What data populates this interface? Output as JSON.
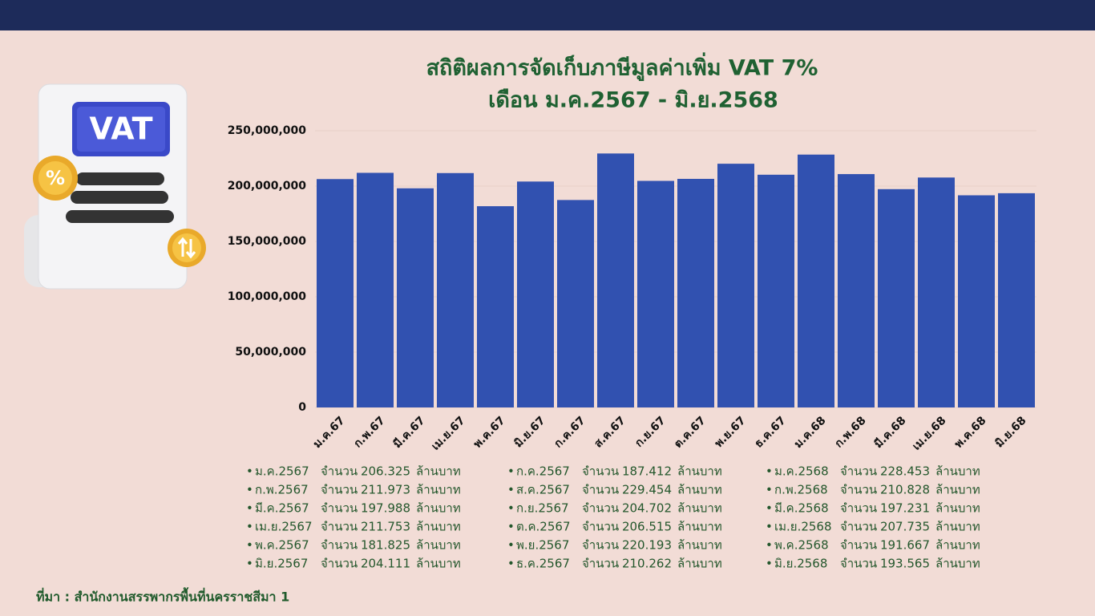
{
  "chart_data": {
    "type": "bar",
    "title": "สถิติผลการจัดเก็บภาษีมูลค่าเพิ่ม VAT 7%",
    "subtitle": "เดือน ม.ค.2567 - มิ.ย.2568",
    "categories": [
      "ม.ค.67",
      "ก.พ.67",
      "มี.ค.67",
      "เม.ย.67",
      "พ.ค.67",
      "มิ.ย.67",
      "ก.ค.67",
      "ส.ค.67",
      "ก.ย.67",
      "ต.ค.67",
      "พ.ย.67",
      "ธ.ค.67",
      "ม.ค.68",
      "ก.พ.68",
      "มี.ค.68",
      "เม.ย.68",
      "พ.ค.68",
      "มิ.ย.68"
    ],
    "values": [
      206325000,
      211973000,
      197988000,
      211753000,
      181825000,
      204111000,
      187412000,
      229454000,
      204702000,
      206515000,
      220193000,
      210262000,
      228453000,
      210828000,
      197231000,
      207735000,
      191667000,
      193565000
    ],
    "color": "#3151b0",
    "ylim": [
      0,
      250000000
    ],
    "yticks": [
      0,
      {
        "value": 50000000,
        "label": "50,000,000"
      },
      {
        "value": 100000000,
        "label": "100,000,000"
      },
      {
        "value": 150000000,
        "label": "150,000,000"
      },
      {
        "value": 200000000,
        "label": "200,000,000"
      },
      {
        "value": 250000000,
        "label": "250,000,000"
      }
    ],
    "grid": true
  },
  "icon": {
    "label": "VAT",
    "badge": "%"
  },
  "summary": [
    {
      "month": "ม.ค.2567",
      "word": "จำนวน",
      "amount": "206.325",
      "unit": "ล้านบาท"
    },
    {
      "month": "ก.พ.2567",
      "word": "จำนวน",
      "amount": "211.973",
      "unit": "ล้านบาท"
    },
    {
      "month": "มี.ค.2567",
      "word": "จำนวน",
      "amount": "197.988",
      "unit": "ล้านบาท"
    },
    {
      "month": "เม.ย.2567",
      "word": "จำนวน",
      "amount": "211.753",
      "unit": "ล้านบาท"
    },
    {
      "month": "พ.ค.2567",
      "word": "จำนวน",
      "amount": "181.825",
      "unit": "ล้านบาท"
    },
    {
      "month": "มิ.ย.2567",
      "word": "จำนวน",
      "amount": "204.111",
      "unit": "ล้านบาท"
    },
    {
      "month": "ก.ค.2567",
      "word": "จำนวน",
      "amount": "187.412",
      "unit": "ล้านบาท"
    },
    {
      "month": "ส.ค.2567",
      "word": "จำนวน",
      "amount": "229.454",
      "unit": "ล้านบาท"
    },
    {
      "month": "ก.ย.2567",
      "word": "จำนวน",
      "amount": "204.702",
      "unit": "ล้านบาท"
    },
    {
      "month": "ต.ค.2567",
      "word": "จำนวน",
      "amount": "206.515",
      "unit": "ล้านบาท"
    },
    {
      "month": "พ.ย.2567",
      "word": "จำนวน",
      "amount": "220.193",
      "unit": "ล้านบาท"
    },
    {
      "month": "ธ.ค.2567",
      "word": "จำนวน",
      "amount": "210.262",
      "unit": "ล้านบาท"
    },
    {
      "month": "ม.ค.2568",
      "word": "จำนวน",
      "amount": "228.453",
      "unit": "ล้านบาท"
    },
    {
      "month": "ก.พ.2568",
      "word": "จำนวน",
      "amount": "210.828",
      "unit": "ล้านบาท"
    },
    {
      "month": "มี.ค.2568",
      "word": "จำนวน",
      "amount": "197.231",
      "unit": "ล้านบาท"
    },
    {
      "month": "เม.ย.2568",
      "word": "จำนวน",
      "amount": "207.735",
      "unit": "ล้านบาท"
    },
    {
      "month": "พ.ค.2568",
      "word": "จำนวน",
      "amount": "191.667",
      "unit": "ล้านบาท"
    },
    {
      "month": "มิ.ย.2568",
      "word": "จำนวน",
      "amount": "193.565",
      "unit": "ล้านบาท"
    }
  ],
  "source": "ที่มา : สำนักงานสรรพากรพื้นที่นครราชสีมา 1"
}
